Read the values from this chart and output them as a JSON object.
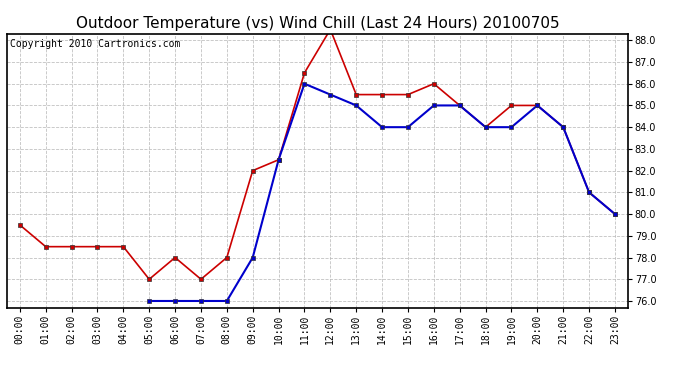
{
  "title": "Outdoor Temperature (vs) Wind Chill (Last 24 Hours) 20100705",
  "copyright": "Copyright 2010 Cartronics.com",
  "hours": [
    "00:00",
    "01:00",
    "02:00",
    "03:00",
    "04:00",
    "05:00",
    "06:00",
    "07:00",
    "08:00",
    "09:00",
    "10:00",
    "11:00",
    "12:00",
    "13:00",
    "14:00",
    "15:00",
    "16:00",
    "17:00",
    "18:00",
    "19:00",
    "20:00",
    "21:00",
    "22:00",
    "23:00"
  ],
  "outdoor_temp": [
    79.5,
    78.5,
    78.5,
    78.5,
    78.5,
    77.0,
    78.0,
    77.0,
    78.0,
    82.0,
    82.5,
    86.5,
    88.5,
    85.5,
    85.5,
    85.5,
    86.0,
    85.0,
    84.0,
    85.0,
    85.0,
    84.0,
    81.0,
    80.0
  ],
  "wind_chill": [
    null,
    null,
    null,
    null,
    null,
    76.0,
    76.0,
    76.0,
    76.0,
    78.0,
    82.5,
    86.0,
    85.5,
    85.0,
    84.0,
    84.0,
    85.0,
    85.0,
    84.0,
    84.0,
    85.0,
    84.0,
    81.0,
    80.0
  ],
  "temp_color": "#cc0000",
  "wind_color": "#0000cc",
  "ylim_min": 76.0,
  "ylim_max": 88.0,
  "ytick_step": 1.0,
  "bg_color": "#ffffff",
  "grid_color": "#bbbbbb",
  "title_fontsize": 11,
  "copyright_fontsize": 7,
  "tick_fontsize": 7,
  "marker": "s",
  "markersize": 3
}
